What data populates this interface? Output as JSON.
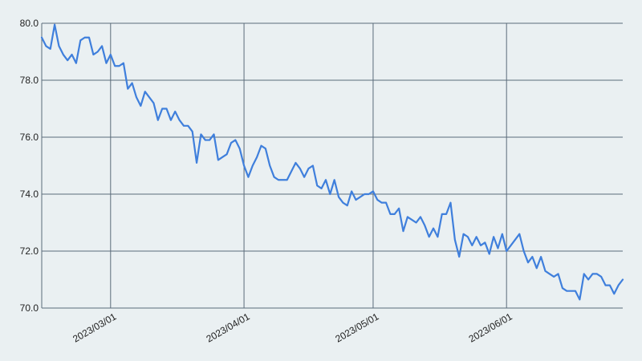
{
  "chart_data": {
    "type": "line",
    "title": "",
    "xlabel": "",
    "ylabel": "",
    "x_range": [
      "2023-02-13",
      "2023-06-28"
    ],
    "ylim": [
      70.0,
      80.0
    ],
    "y_ticks": [
      70.0,
      72.0,
      74.0,
      76.0,
      78.0,
      80.0
    ],
    "y_tick_labels": [
      "70.0",
      "72.0",
      "74.0",
      "76.0",
      "78.0",
      "80.0"
    ],
    "x_ticks": [
      "2023-03-01",
      "2023-04-01",
      "2023-05-01",
      "2023-06-01"
    ],
    "x_tick_labels": [
      "2023/03/01",
      "2023/04/01",
      "2023/05/01",
      "2023/06/01"
    ],
    "grid": true,
    "legend": "none",
    "colors": {
      "line": "#3f7fdc",
      "grid": "#5b6b7a",
      "background": "#eaf0f2"
    },
    "series": [
      {
        "x": [
          "2023-02-13",
          "2023-02-14",
          "2023-02-15",
          "2023-02-16",
          "2023-02-17",
          "2023-02-18",
          "2023-02-19",
          "2023-02-20",
          "2023-02-21",
          "2023-02-22",
          "2023-02-23",
          "2023-02-24",
          "2023-02-25",
          "2023-02-26",
          "2023-02-27",
          "2023-02-28",
          "2023-03-01",
          "2023-03-02",
          "2023-03-03",
          "2023-03-04",
          "2023-03-05",
          "2023-03-06",
          "2023-03-07",
          "2023-03-08",
          "2023-03-09",
          "2023-03-10",
          "2023-03-11",
          "2023-03-12",
          "2023-03-13",
          "2023-03-14",
          "2023-03-15",
          "2023-03-16",
          "2023-03-17",
          "2023-03-18",
          "2023-03-19",
          "2023-03-20",
          "2023-03-21",
          "2023-03-22",
          "2023-03-23",
          "2023-03-24",
          "2023-03-25",
          "2023-03-26",
          "2023-03-27",
          "2023-03-28",
          "2023-03-29",
          "2023-03-30",
          "2023-03-31",
          "2023-04-01",
          "2023-04-02",
          "2023-04-03",
          "2023-04-04",
          "2023-04-05",
          "2023-04-06",
          "2023-04-07",
          "2023-04-08",
          "2023-04-09",
          "2023-04-10",
          "2023-04-11",
          "2023-04-12",
          "2023-04-13",
          "2023-04-14",
          "2023-04-15",
          "2023-04-16",
          "2023-04-17",
          "2023-04-18",
          "2023-04-19",
          "2023-04-20",
          "2023-04-21",
          "2023-04-22",
          "2023-04-23",
          "2023-04-24",
          "2023-04-25",
          "2023-04-26",
          "2023-04-27",
          "2023-04-28",
          "2023-04-29",
          "2023-04-30",
          "2023-05-01",
          "2023-05-02",
          "2023-05-03",
          "2023-05-04",
          "2023-05-05",
          "2023-05-06",
          "2023-05-07",
          "2023-05-08",
          "2023-05-09",
          "2023-05-10",
          "2023-05-11",
          "2023-05-12",
          "2023-05-13",
          "2023-05-14",
          "2023-05-15",
          "2023-05-16",
          "2023-05-17",
          "2023-05-18",
          "2023-05-19",
          "2023-05-20",
          "2023-05-21",
          "2023-05-22",
          "2023-05-23",
          "2023-05-24",
          "2023-05-25",
          "2023-05-26",
          "2023-05-27",
          "2023-05-28",
          "2023-05-29",
          "2023-05-30",
          "2023-05-31",
          "2023-06-01",
          "2023-06-02",
          "2023-06-03",
          "2023-06-04",
          "2023-06-05",
          "2023-06-06",
          "2023-06-07",
          "2023-06-08",
          "2023-06-09",
          "2023-06-10",
          "2023-06-11",
          "2023-06-12",
          "2023-06-13",
          "2023-06-14",
          "2023-06-15",
          "2023-06-16",
          "2023-06-17",
          "2023-06-18",
          "2023-06-19",
          "2023-06-20",
          "2023-06-21",
          "2023-06-22",
          "2023-06-23",
          "2023-06-24",
          "2023-06-25",
          "2023-06-26",
          "2023-06-27",
          "2023-06-28"
        ],
        "y": [
          79.5,
          79.2,
          79.1,
          79.95,
          79.2,
          78.9,
          78.7,
          78.9,
          78.6,
          79.4,
          79.5,
          79.5,
          78.9,
          79.0,
          79.2,
          78.6,
          78.9,
          78.5,
          78.5,
          78.6,
          77.7,
          77.9,
          77.4,
          77.1,
          77.6,
          77.4,
          77.2,
          76.6,
          77.0,
          77.0,
          76.6,
          76.9,
          76.6,
          76.4,
          76.4,
          76.2,
          75.1,
          76.1,
          75.9,
          75.9,
          76.1,
          75.2,
          75.3,
          75.4,
          75.8,
          75.9,
          75.6,
          75.0,
          74.6,
          75.0,
          75.3,
          75.7,
          75.6,
          75.0,
          74.6,
          74.5,
          74.5,
          74.5,
          74.8,
          75.1,
          74.9,
          74.6,
          74.9,
          75.0,
          74.3,
          74.2,
          74.5,
          74.0,
          74.5,
          73.9,
          73.7,
          73.6,
          74.1,
          73.8,
          73.9,
          74.0,
          74.0,
          74.1,
          73.8,
          73.7,
          73.7,
          73.3,
          73.3,
          73.5,
          72.7,
          73.2,
          73.1,
          73.0,
          73.2,
          72.9,
          72.5,
          72.8,
          72.5,
          73.3,
          73.3,
          73.7,
          72.4,
          71.8,
          72.6,
          72.5,
          72.2,
          72.5,
          72.2,
          72.3,
          71.9,
          72.5,
          72.1,
          72.6,
          72.0,
          72.2,
          72.4,
          72.6,
          72.0,
          71.6,
          71.8,
          71.4,
          71.8,
          71.3,
          71.2,
          71.1,
          71.2,
          70.7,
          70.6,
          70.6,
          70.6,
          70.3,
          71.2,
          71.0,
          71.2,
          71.2,
          71.1,
          70.8,
          70.8,
          70.5,
          70.8,
          71.0
        ]
      }
    ]
  }
}
